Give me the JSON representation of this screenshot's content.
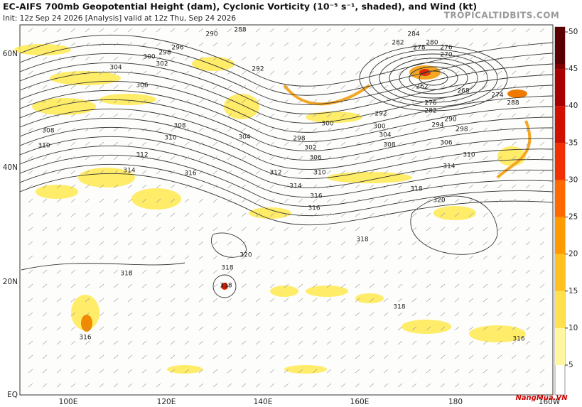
{
  "header": {
    "title": "EC-AIFS 700mb Geopotential Height (dam), Cyclonic Vorticity (10⁻⁵ s⁻¹, shaded), and Wind (kt)",
    "subtitle": "Init: 12z Sep 24 2026   [Analysis]   valid at 12z Thu, Sep 24 2026",
    "site": "TROPICALTIDBITS.COM"
  },
  "map": {
    "lat_labels": [
      "60N",
      "40N",
      "20N",
      "EQ"
    ],
    "lon_labels": [
      "100E",
      "120E",
      "140E",
      "160E",
      "180",
      "160W"
    ],
    "contour_labels": [
      "288",
      "290",
      "296",
      "298",
      "300",
      "302",
      "304",
      "306",
      "308",
      "310",
      "308",
      "310",
      "312",
      "314",
      "316",
      "292",
      "304",
      "298",
      "300",
      "302",
      "306",
      "310",
      "312",
      "314",
      "316",
      "318",
      "320",
      "318",
      "320",
      "318",
      "316",
      "318",
      "316",
      "318",
      "284",
      "282",
      "280",
      "278",
      "276",
      "270",
      "262",
      "268",
      "274",
      "276",
      "282",
      "288",
      "290",
      "294",
      "298",
      "300",
      "304",
      "308",
      "306",
      "310",
      "314",
      "318",
      "316",
      "292"
    ]
  },
  "colorbar": {
    "ticks": [
      5,
      10,
      15,
      20,
      25,
      30,
      35,
      40,
      45,
      50
    ]
  },
  "watermark": "NangMua.VN"
}
